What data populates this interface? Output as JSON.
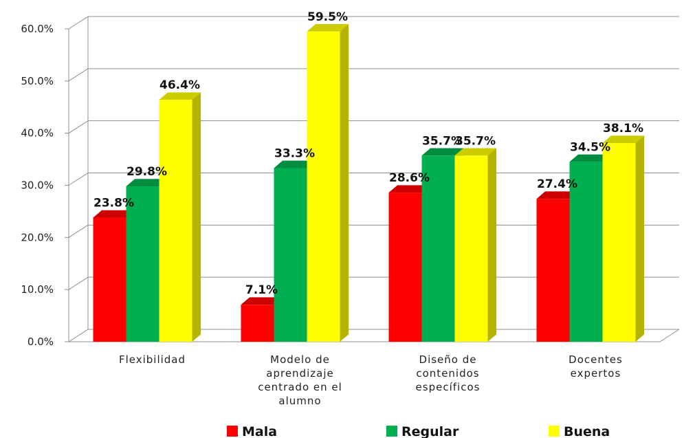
{
  "chart_data": {
    "type": "bar",
    "categories": [
      [
        "Flexibilidad"
      ],
      [
        "Modelo de",
        "aprendizaje",
        "centrado en el",
        "alumno"
      ],
      [
        "Diseño de",
        "contenidos",
        "específicos"
      ],
      [
        "Docentes",
        "expertos"
      ]
    ],
    "series": [
      {
        "name": "Mala",
        "color": "#ff0000",
        "values": [
          23.8,
          7.1,
          28.6,
          27.4
        ],
        "labels": [
          "23.8%",
          "7.1%",
          "28.6%",
          "27.4%"
        ]
      },
      {
        "name": "Regular",
        "color": "#00b050",
        "values": [
          29.8,
          33.3,
          35.7,
          34.5
        ],
        "labels": [
          "29.8%",
          "33.3%",
          "35.7%",
          "34.5%"
        ]
      },
      {
        "name": "Buena",
        "color": "#ffff00",
        "values": [
          46.4,
          59.5,
          35.7,
          38.1
        ],
        "labels": [
          "46.4%",
          "59.5%",
          "35.7%",
          "38.1%"
        ]
      }
    ],
    "yticks": [
      "0.0%",
      "10.0%",
      "20.0%",
      "30.0%",
      "40.0%",
      "50.0%",
      "60.0%"
    ],
    "ylim": [
      0,
      60
    ],
    "grid": true,
    "legend": "bottom",
    "three_d": true,
    "title": "",
    "xlabel": "",
    "ylabel": ""
  }
}
